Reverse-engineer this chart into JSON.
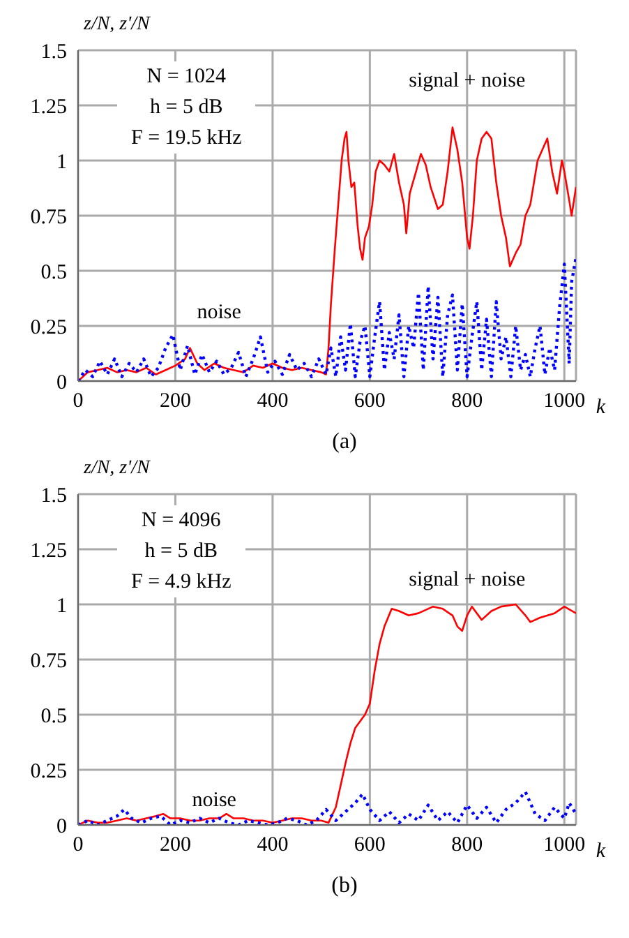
{
  "chart_data": [
    {
      "type": "line",
      "xlabel": "k",
      "ylabel": "z/N, z'/N",
      "xlim": [
        0,
        1024
      ],
      "ylim": [
        0,
        1.5
      ],
      "xticks": [
        0,
        200,
        400,
        600,
        800,
        1000
      ],
      "yticks": [
        0,
        0.25,
        0.5,
        0.75,
        1,
        1.25,
        1.5
      ],
      "grid": true,
      "marker": "none",
      "annotations": [
        "N = 1024",
        "h = 5 dB",
        "F = 19.5 kHz",
        "signal + noise",
        "noise",
        "(a)"
      ],
      "series": [
        {
          "color": "#ff0000",
          "line_style": "solid",
          "x": [
            0,
            20,
            40,
            60,
            80,
            100,
            120,
            140,
            160,
            180,
            200,
            220,
            230,
            245,
            260,
            280,
            300,
            320,
            340,
            360,
            380,
            400,
            420,
            440,
            460,
            480,
            500,
            510,
            515,
            520,
            528,
            535,
            542,
            548,
            552,
            556,
            562,
            568,
            575,
            580,
            585,
            590,
            598,
            605,
            612,
            620,
            630,
            640,
            650,
            660,
            670,
            675,
            682,
            695,
            705,
            715,
            725,
            740,
            750,
            760,
            770,
            780,
            790,
            800,
            805,
            812,
            820,
            830,
            840,
            850,
            860,
            870,
            880,
            888,
            900,
            910,
            920,
            930,
            945,
            955,
            965,
            975,
            985,
            995,
            1000,
            1010,
            1015,
            1024
          ],
          "values": [
            0,
            0.04,
            0.05,
            0.06,
            0.04,
            0.05,
            0.04,
            0.06,
            0.03,
            0.05,
            0.07,
            0.1,
            0.15,
            0.08,
            0.05,
            0.08,
            0.06,
            0.05,
            0.04,
            0.07,
            0.06,
            0.08,
            0.06,
            0.05,
            0.06,
            0.05,
            0.04,
            0.03,
            0.15,
            0.35,
            0.6,
            0.8,
            1,
            1.1,
            1.13,
            1,
            0.88,
            0.9,
            0.7,
            0.6,
            0.55,
            0.65,
            0.7,
            0.8,
            0.95,
            1,
            0.98,
            0.95,
            1.03,
            0.9,
            0.8,
            0.67,
            0.85,
            0.95,
            1.03,
            0.98,
            0.88,
            0.78,
            0.8,
            0.95,
            1.15,
            1.05,
            0.9,
            0.65,
            0.6,
            0.75,
            1,
            1.1,
            1.13,
            1.1,
            0.9,
            0.75,
            0.65,
            0.52,
            0.58,
            0.62,
            0.75,
            0.8,
            1,
            1.05,
            1.1,
            0.95,
            0.85,
            1,
            0.95,
            0.82,
            0.75,
            0.88
          ]
        },
        {
          "color": "#0000ff",
          "line_style": "dotted",
          "x": [
            0,
            15,
            30,
            45,
            60,
            75,
            90,
            105,
            120,
            135,
            150,
            165,
            180,
            195,
            210,
            225,
            240,
            255,
            270,
            285,
            300,
            315,
            330,
            345,
            360,
            375,
            390,
            405,
            420,
            435,
            450,
            465,
            480,
            495,
            510,
            520,
            530,
            540,
            550,
            560,
            570,
            580,
            590,
            600,
            610,
            620,
            630,
            640,
            650,
            660,
            670,
            680,
            690,
            700,
            710,
            720,
            730,
            740,
            750,
            760,
            770,
            780,
            790,
            800,
            810,
            820,
            830,
            840,
            850,
            860,
            870,
            880,
            890,
            900,
            910,
            920,
            930,
            940,
            950,
            960,
            970,
            980,
            990,
            1000,
            1010,
            1015,
            1024
          ],
          "values": [
            0,
            0.05,
            0.02,
            0.09,
            0.03,
            0.1,
            0.02,
            0.08,
            0.04,
            0.1,
            0.02,
            0.06,
            0.15,
            0.21,
            0.05,
            0.16,
            0.03,
            0.12,
            0.04,
            0.09,
            0.03,
            0.06,
            0.13,
            0.02,
            0.1,
            0.2,
            0.04,
            0.09,
            0.03,
            0.12,
            0.05,
            0.08,
            0.02,
            0.1,
            0.03,
            0.15,
            0.02,
            0.2,
            0.05,
            0.26,
            0.02,
            0.18,
            0.25,
            0.02,
            0.2,
            0.36,
            0.05,
            0.22,
            0.1,
            0.3,
            0.02,
            0.25,
            0.15,
            0.4,
            0.05,
            0.43,
            0.1,
            0.38,
            0.02,
            0.3,
            0.39,
            0.05,
            0.35,
            0.02,
            0.2,
            0.36,
            0.05,
            0.28,
            0.02,
            0.36,
            0.1,
            0.2,
            0.02,
            0.25,
            0.05,
            0.12,
            0.02,
            0.15,
            0.25,
            0.03,
            0.15,
            0.05,
            0.33,
            0.53,
            0.08,
            0.45,
            0.56
          ]
        }
      ]
    },
    {
      "type": "line",
      "xlabel": "k",
      "ylabel": "z/N, z'/N",
      "xlim": [
        0,
        1024
      ],
      "ylim": [
        0,
        1.5
      ],
      "xticks": [
        0,
        200,
        400,
        600,
        800,
        1000
      ],
      "yticks": [
        0,
        0.25,
        0.5,
        0.75,
        1,
        1.25,
        1.5
      ],
      "grid": true,
      "marker": "none",
      "annotations": [
        "N = 4096",
        "h = 5 dB",
        "F = 4.9 kHz",
        "signal + noise",
        "noise",
        "(b)"
      ],
      "series": [
        {
          "color": "#ff0000",
          "line_style": "solid",
          "x": [
            0,
            20,
            40,
            60,
            80,
            100,
            120,
            140,
            160,
            175,
            190,
            210,
            230,
            250,
            270,
            290,
            305,
            320,
            340,
            360,
            380,
            400,
            420,
            440,
            460,
            480,
            500,
            515,
            530,
            540,
            550,
            560,
            570,
            580,
            590,
            600,
            610,
            620,
            630,
            645,
            660,
            680,
            700,
            730,
            750,
            770,
            780,
            790,
            800,
            810,
            830,
            850,
            870,
            900,
            920,
            930,
            950,
            980,
            1000,
            1024
          ],
          "values": [
            0,
            0.02,
            0.01,
            0.01,
            0.02,
            0.03,
            0.02,
            0.03,
            0.04,
            0.05,
            0.03,
            0.03,
            0.02,
            0.02,
            0.03,
            0.03,
            0.05,
            0.03,
            0.03,
            0.02,
            0.02,
            0.01,
            0.02,
            0.03,
            0.03,
            0.02,
            0.02,
            0.01,
            0.08,
            0.18,
            0.28,
            0.37,
            0.44,
            0.47,
            0.5,
            0.55,
            0.7,
            0.82,
            0.9,
            0.98,
            0.97,
            0.95,
            0.96,
            0.99,
            0.98,
            0.95,
            0.9,
            0.88,
            0.95,
            0.99,
            0.93,
            0.97,
            0.99,
            1,
            0.95,
            0.92,
            0.94,
            0.96,
            0.99,
            0.96
          ]
        },
        {
          "color": "#0000ff",
          "line_style": "dotted",
          "x": [
            0,
            20,
            40,
            60,
            80,
            95,
            110,
            130,
            150,
            170,
            190,
            210,
            230,
            250,
            270,
            290,
            310,
            330,
            350,
            370,
            390,
            410,
            430,
            450,
            470,
            490,
            510,
            530,
            550,
            570,
            585,
            600,
            620,
            640,
            660,
            680,
            700,
            720,
            740,
            760,
            780,
            800,
            820,
            840,
            860,
            880,
            900,
            920,
            940,
            960,
            980,
            1000,
            1010,
            1024
          ],
          "values": [
            0,
            0.02,
            0,
            0.02,
            0.04,
            0.07,
            0.03,
            0.01,
            0.03,
            0.04,
            0,
            0.02,
            0.01,
            0.03,
            0.01,
            0.03,
            0.01,
            0,
            0.02,
            0.01,
            0,
            0.01,
            0.03,
            0.02,
            0,
            0.02,
            0.07,
            0.02,
            0.06,
            0.1,
            0.14,
            0.07,
            0.02,
            0.06,
            0.01,
            0.05,
            0.02,
            0.09,
            0.02,
            0.06,
            0.01,
            0.09,
            0.03,
            0.08,
            0.01,
            0.07,
            0.1,
            0.15,
            0.05,
            0.02,
            0.08,
            0.03,
            0.1,
            0.05
          ]
        }
      ]
    }
  ]
}
